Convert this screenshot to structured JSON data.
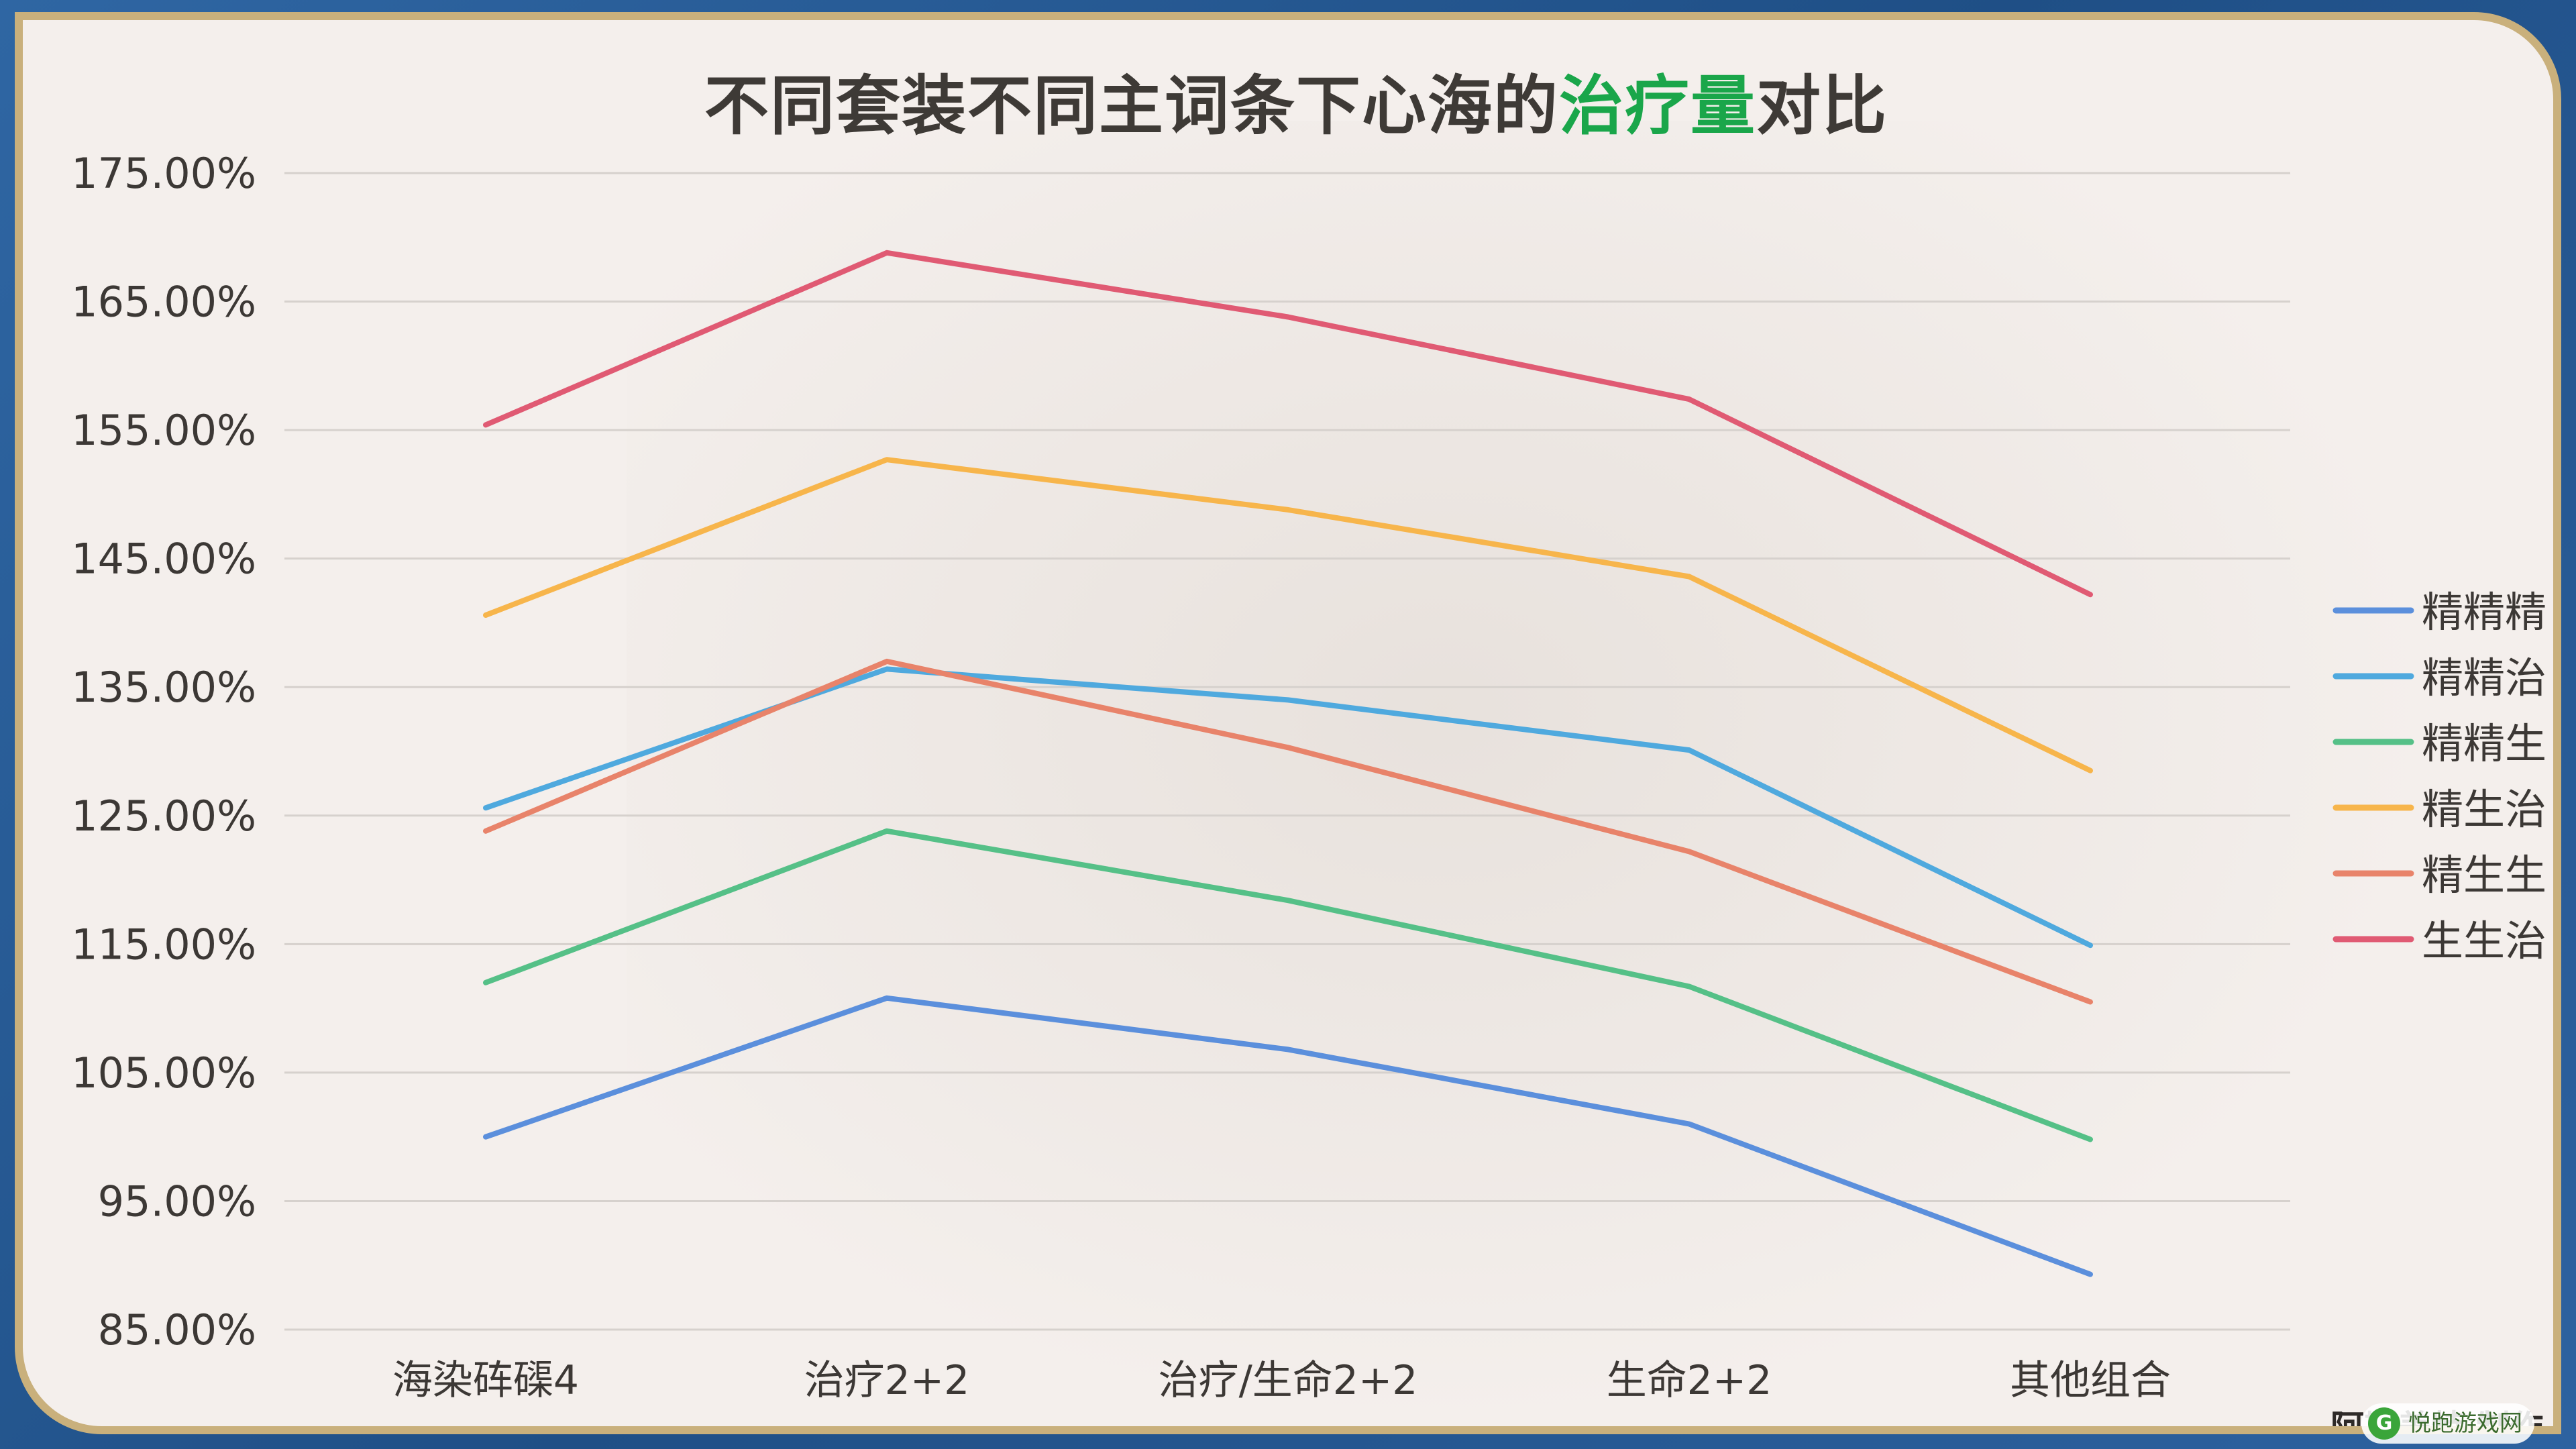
{
  "title": {
    "part1": "不同套装不同主词条下心海的",
    "highlight": "治疗量",
    "part2": "对比",
    "highlight_color": "#1aa64a"
  },
  "author_note": "阿斯盖特 制作",
  "watermark": {
    "logo_char": "G",
    "text": "悦跑游戏网"
  },
  "chart_data": {
    "type": "line",
    "title": "不同套装不同主词条下心海的治疗量对比",
    "categories": [
      "海染砗磲4",
      "治疗2+2",
      "治疗/生命2+2",
      "生命2+2",
      "其他组合"
    ],
    "y_ticks": [
      "175.00%",
      "165.00%",
      "155.00%",
      "145.00%",
      "135.00%",
      "125.00%",
      "115.00%",
      "105.00%",
      "95.00%",
      "85.00%"
    ],
    "ylim": [
      85,
      175
    ],
    "y_unit": "%",
    "grid": true,
    "legend_position": "right",
    "series": [
      {
        "name": "精精精",
        "color": "#5b8fdc",
        "values": [
          100.0,
          110.8,
          106.8,
          101.0,
          89.3
        ]
      },
      {
        "name": "精精治",
        "color": "#4fa9de",
        "values": [
          125.6,
          136.4,
          134.0,
          130.1,
          114.9
        ]
      },
      {
        "name": "精精生",
        "color": "#55c087",
        "values": [
          112.0,
          123.8,
          118.4,
          111.7,
          99.8
        ]
      },
      {
        "name": "精生治",
        "color": "#f7b54b",
        "values": [
          140.6,
          152.7,
          148.8,
          143.6,
          128.5
        ]
      },
      {
        "name": "精生生",
        "color": "#e8836a",
        "values": [
          123.8,
          137.0,
          130.3,
          122.2,
          110.5
        ]
      },
      {
        "name": "生生治",
        "color": "#e05a73",
        "values": [
          155.4,
          168.8,
          163.8,
          157.4,
          142.2
        ]
      }
    ]
  }
}
